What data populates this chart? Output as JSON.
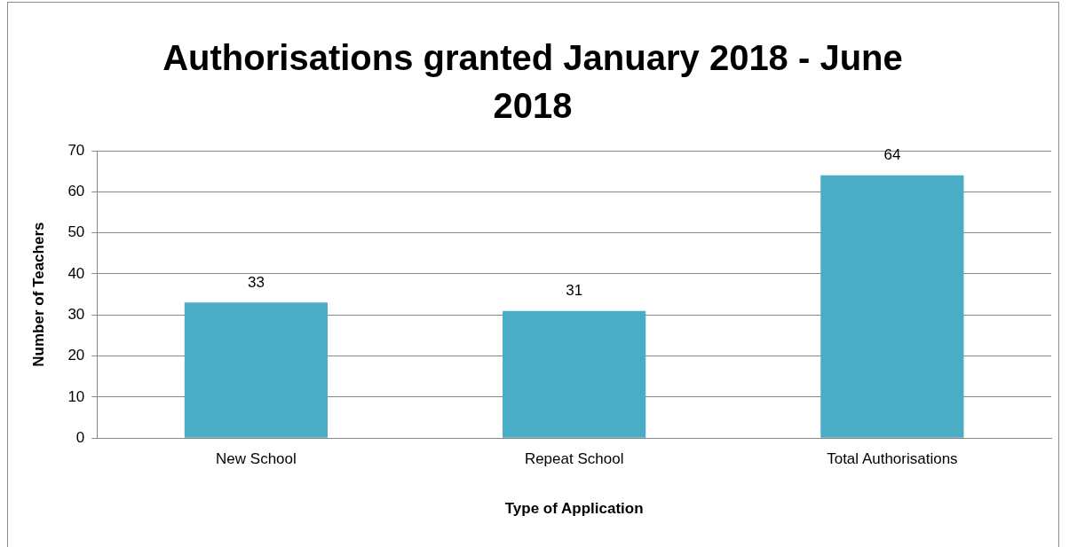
{
  "chart_data": {
    "type": "bar",
    "title": "Authorisations granted January 2018 - June 2018",
    "xlabel": "Type of Application",
    "ylabel": "Number of Teachers",
    "categories": [
      "New School",
      "Repeat School",
      "Total Authorisations"
    ],
    "values": [
      33,
      31,
      64
    ],
    "color": "#4bacc6",
    "ylim": [
      0,
      70
    ],
    "yticks": [
      0,
      10,
      20,
      30,
      40,
      50,
      60,
      70
    ],
    "grid": "y",
    "data_labels": true,
    "legend": false
  }
}
